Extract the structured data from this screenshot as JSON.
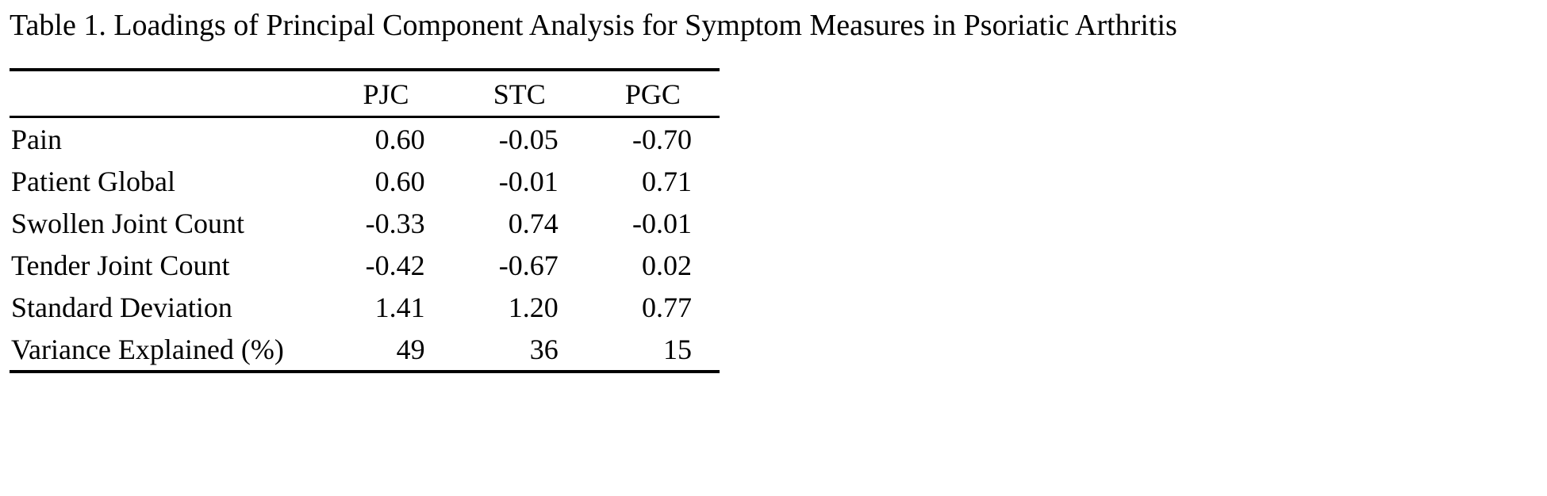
{
  "page": {
    "title": "Table 1. Loadings of Principal Component Analysis for Symptom Measures in Psoriatic Arthritis"
  },
  "table": {
    "headers": {
      "label": "",
      "col1": "PJC",
      "col2": "STC",
      "col3": "PGC"
    },
    "rows": [
      {
        "label": "Pain",
        "values": [
          "0.60",
          "-0.05",
          "-0.70"
        ]
      },
      {
        "label": "Patient Global",
        "values": [
          "0.60",
          "-0.01",
          "0.71"
        ]
      },
      {
        "label": "Swollen Joint Count",
        "values": [
          "-0.33",
          "0.74",
          "-0.01"
        ]
      },
      {
        "label": "Tender Joint Count",
        "values": [
          "-0.42",
          "-0.67",
          "0.02"
        ]
      },
      {
        "label": "Standard Deviation",
        "values": [
          "1.41",
          "1.20",
          "0.77"
        ]
      },
      {
        "label": "Variance Explained (%)",
        "values": [
          "49",
          "36",
          "15"
        ]
      }
    ]
  },
  "colors": {
    "background": "#ffffff",
    "text": "#000000",
    "rule": "#000000"
  }
}
